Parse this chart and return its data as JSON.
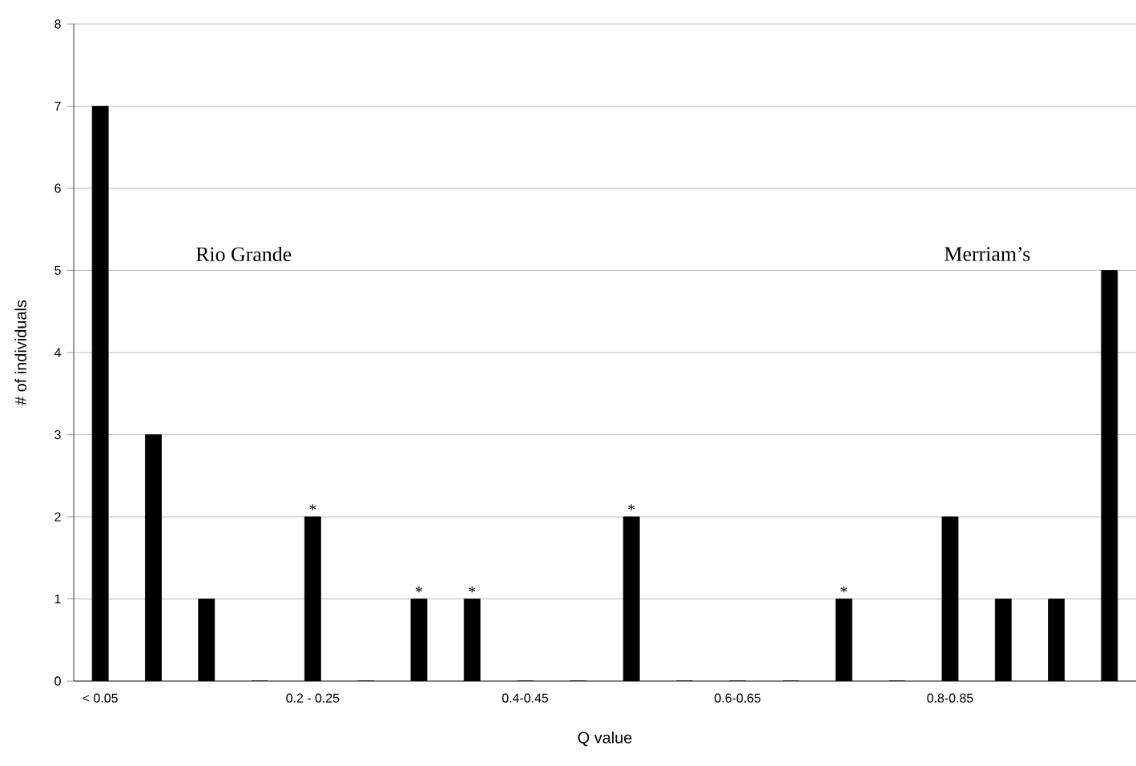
{
  "chart_data": {
    "type": "bar",
    "xlabel": "Q value",
    "ylabel": "# of individuals",
    "categories": [
      "< 0.05",
      null,
      null,
      null,
      "0.2 - 0.25",
      null,
      null,
      null,
      "0.4-0.45",
      null,
      null,
      null,
      "0.6-0.65",
      null,
      null,
      null,
      "0.8-0.85",
      null,
      null,
      null
    ],
    "values": [
      7,
      3,
      1,
      0,
      2,
      0,
      1,
      1,
      0,
      0,
      2,
      0,
      0,
      0,
      1,
      0,
      2,
      1,
      1,
      5
    ],
    "value_labels": [
      null,
      null,
      null,
      null,
      "*",
      null,
      "*",
      "*",
      null,
      null,
      "*",
      null,
      null,
      null,
      "*",
      null,
      null,
      null,
      null,
      null
    ],
    "color": "#000000",
    "ylim": [
      0,
      8
    ],
    "yticks": [
      0,
      1,
      2,
      3,
      4,
      5,
      6,
      7,
      8
    ],
    "grid": "y",
    "annotations": [
      "Rio Grande",
      "Merriam’s"
    ]
  }
}
